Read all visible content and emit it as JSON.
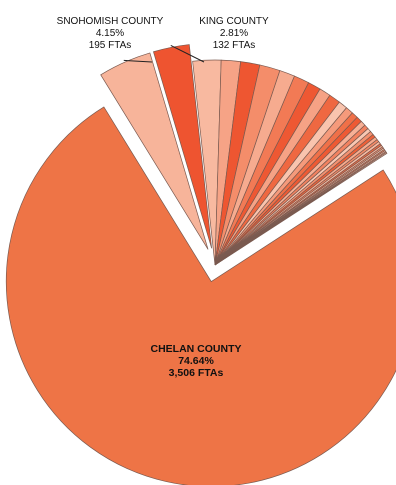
{
  "chart_data": {
    "type": "pie",
    "units": "FTAs",
    "exploded": true,
    "slices": [
      {
        "name": "CHELAN COUNTY",
        "percent": 74.64,
        "value": 3506,
        "label_lines": [
          "CHELAN COUNTY",
          "74.64%",
          "3,506 FTAs"
        ],
        "color": "#EE7446",
        "explode": true
      },
      {
        "name": "SNOHOMISH COUNTY",
        "percent": 4.15,
        "value": 195,
        "label_lines": [
          "SNOHOMISH COUNTY",
          "4.15%",
          "195 FTAs"
        ],
        "color": "#F7B49A",
        "explode": true
      },
      {
        "name": "KING COUNTY",
        "percent": 2.81,
        "value": 132,
        "label_lines": [
          "KING COUNTY",
          "2.81%",
          "132 FTAs"
        ],
        "color": "#EE5430",
        "explode": true
      },
      {
        "name": "",
        "percent": 2.2,
        "color": "#F8B9A0",
        "explode": false
      },
      {
        "name": "",
        "percent": 1.5,
        "color": "#F6A386",
        "explode": false
      },
      {
        "name": "",
        "percent": 1.5,
        "color": "#EE5631",
        "explode": false
      },
      {
        "name": "",
        "percent": 1.6,
        "color": "#F48D6A",
        "explode": false
      },
      {
        "name": "",
        "percent": 1.2,
        "color": "#F6AB8F",
        "explode": false
      },
      {
        "name": "",
        "percent": 1.2,
        "color": "#F27A55",
        "explode": false
      },
      {
        "name": "",
        "percent": 1.0,
        "color": "#EE5833",
        "explode": false
      },
      {
        "name": "",
        "percent": 0.9,
        "color": "#F6A285",
        "explode": false
      },
      {
        "name": "",
        "percent": 0.9,
        "color": "#EF6841",
        "explode": false
      },
      {
        "name": "",
        "percent": 0.7,
        "color": "#F9C4AE",
        "explode": false
      },
      {
        "name": "",
        "percent": 0.6,
        "color": "#F59A7B",
        "explode": false
      },
      {
        "name": "",
        "percent": 0.5,
        "color": "#F07048",
        "explode": false
      },
      {
        "name": "",
        "percent": 0.45,
        "color": "#EE5A34",
        "explode": false
      },
      {
        "name": "",
        "percent": 0.4,
        "color": "#F7B096",
        "explode": false
      },
      {
        "name": "",
        "percent": 0.35,
        "color": "#F28260",
        "explode": false
      },
      {
        "name": "",
        "percent": 0.3,
        "color": "#F9C8B3",
        "explode": false
      },
      {
        "name": "",
        "percent": 0.3,
        "color": "#F39170",
        "explode": false
      },
      {
        "name": "",
        "percent": 0.25,
        "color": "#EE6038",
        "explode": false
      },
      {
        "name": "",
        "percent": 0.25,
        "color": "#F6AB8F",
        "explode": false
      },
      {
        "name": "",
        "percent": 0.2,
        "color": "#F48A67",
        "explode": false
      },
      {
        "name": "",
        "percent": 0.2,
        "color": "#F8BCA4",
        "explode": false
      },
      {
        "name": "",
        "percent": 0.15,
        "color": "#EF6A43",
        "explode": false
      },
      {
        "name": "",
        "percent": 0.15,
        "color": "#F7B39A",
        "explode": false
      },
      {
        "name": "",
        "percent": 0.12,
        "color": "#F59C7D",
        "explode": false
      },
      {
        "name": "",
        "percent": 0.12,
        "color": "#F9C6B1",
        "explode": false
      },
      {
        "name": "",
        "percent": 0.1,
        "color": "#F28460",
        "explode": false
      },
      {
        "name": "",
        "percent": 0.1,
        "color": "#F8BEA7",
        "explode": false
      },
      {
        "name": "",
        "percent": 0.08,
        "color": "#F7AF95",
        "explode": false
      },
      {
        "name": "",
        "percent": 0.08,
        "color": "#F9CAB6",
        "explode": false
      }
    ]
  }
}
